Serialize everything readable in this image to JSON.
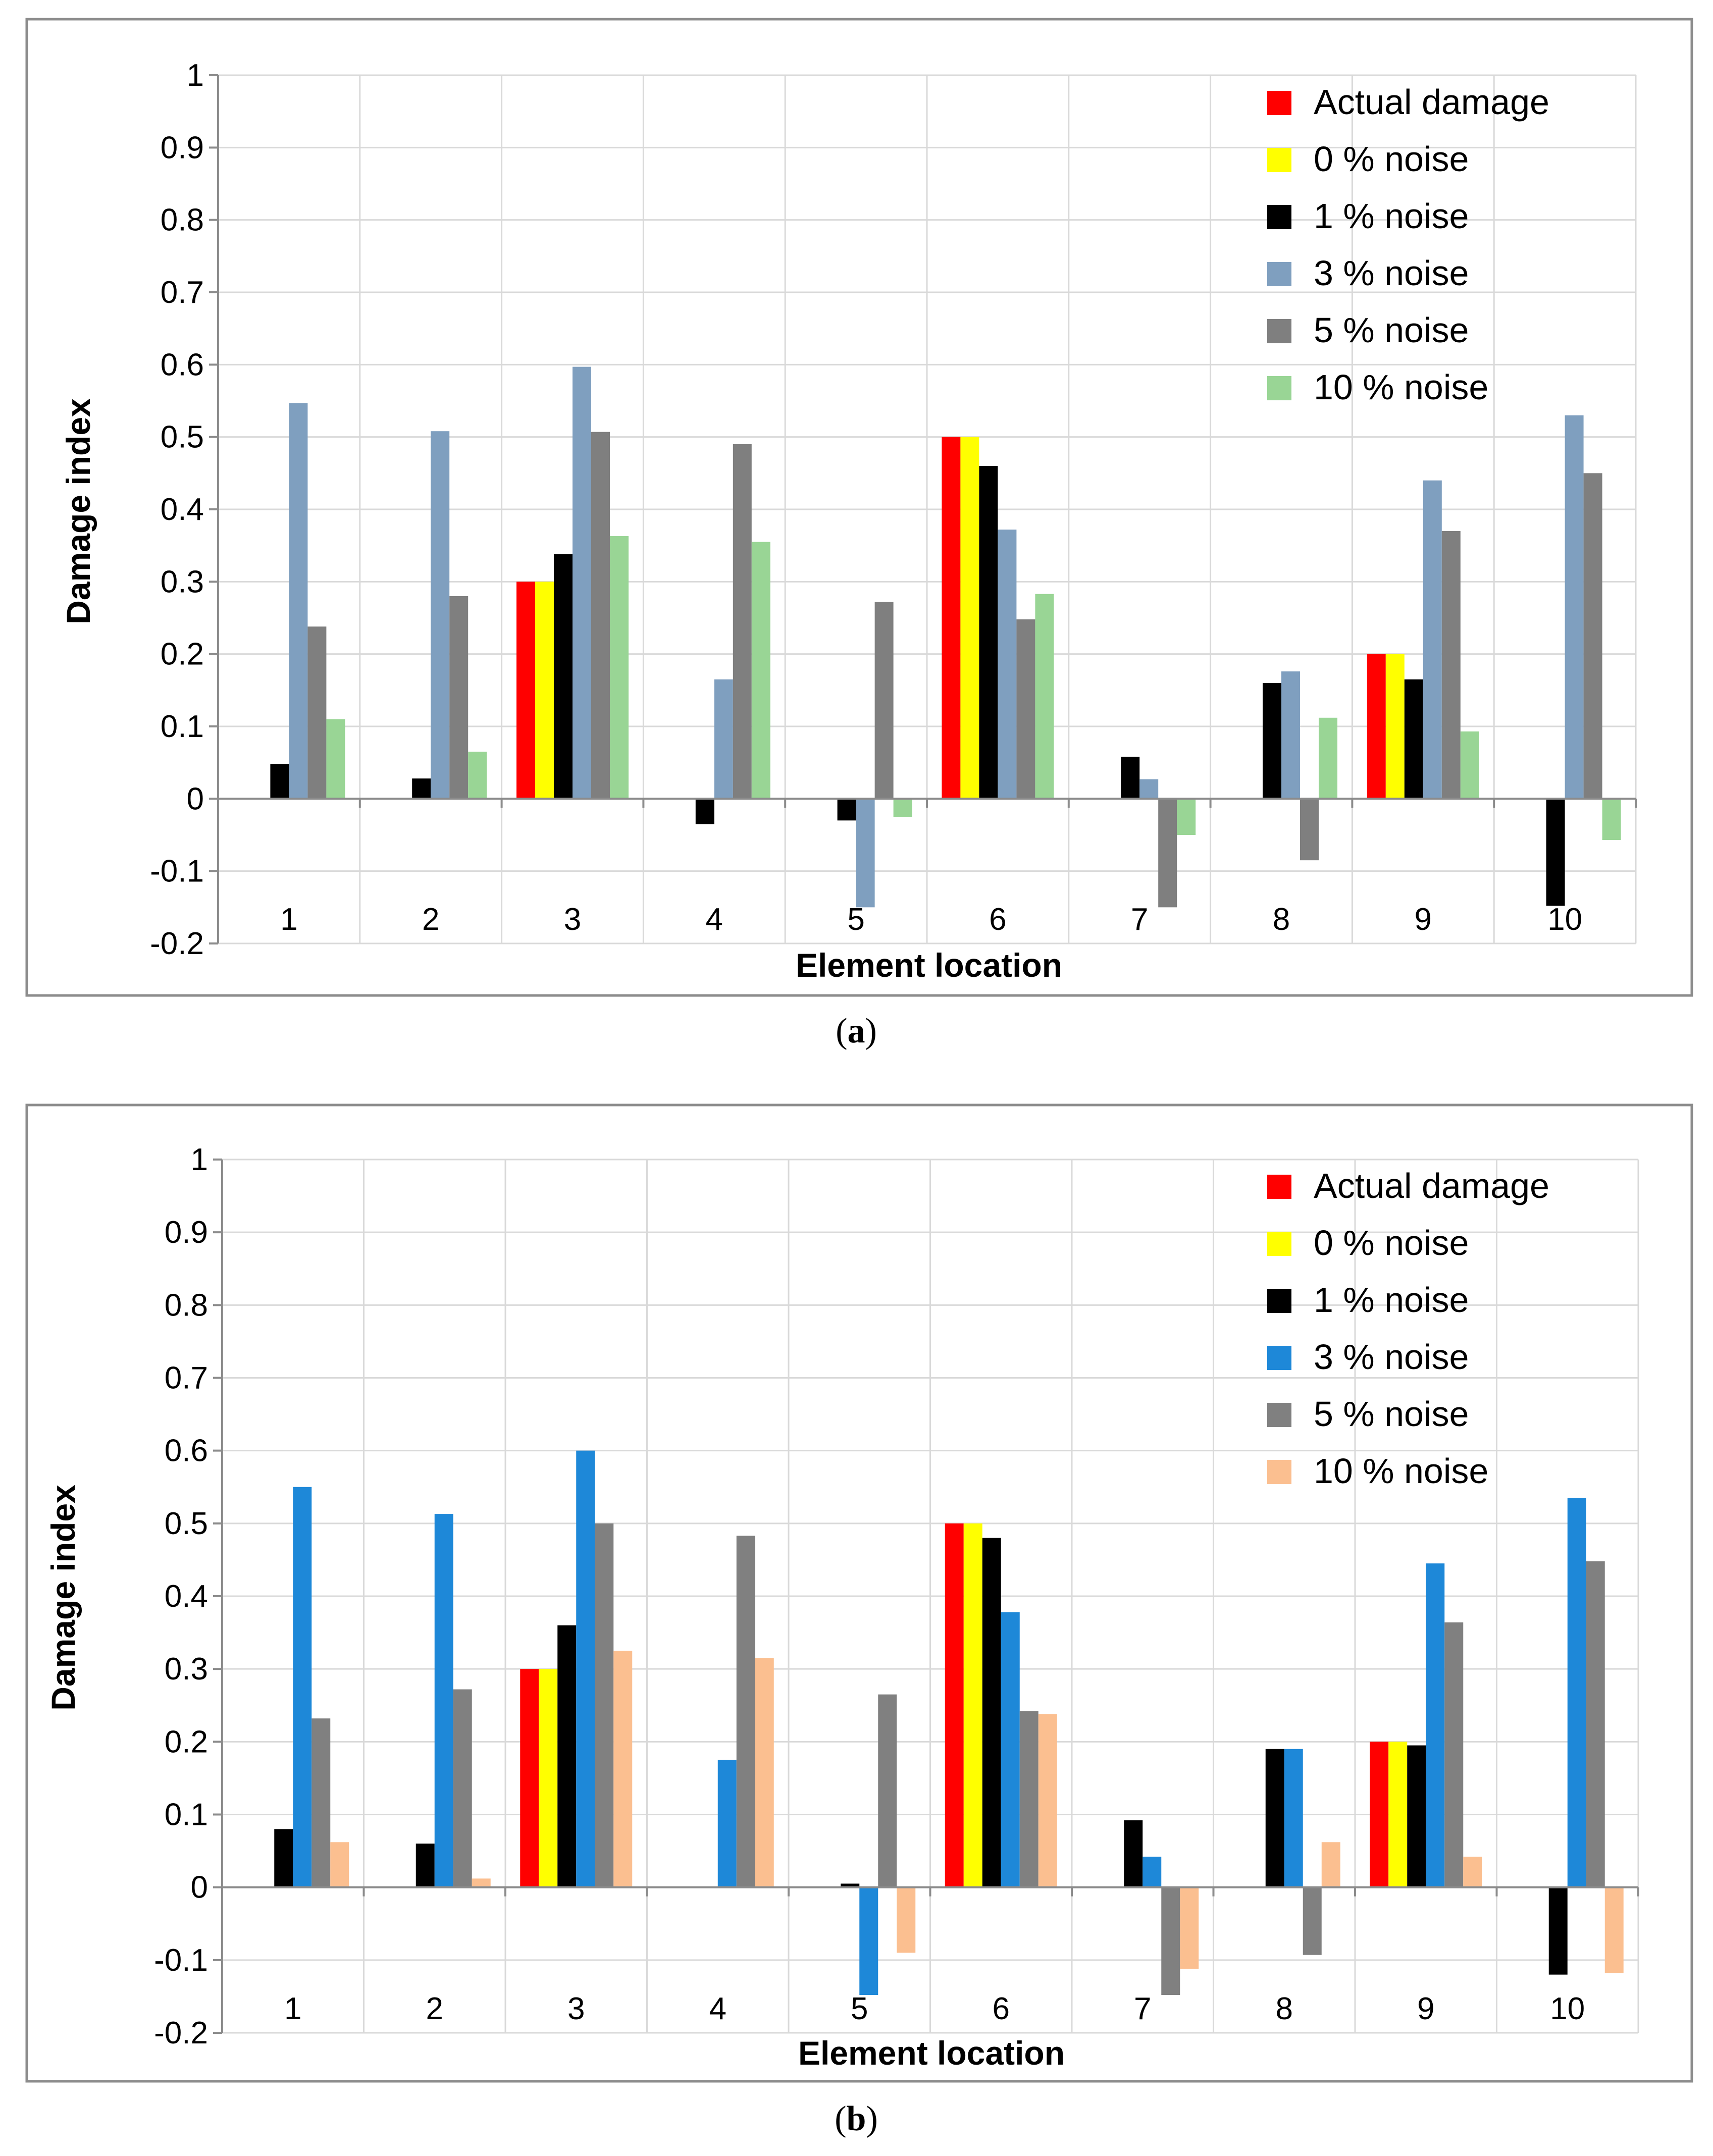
{
  "chart_data": [
    {
      "type": "bar",
      "caption": "(a)",
      "caption_paren_open": "(",
      "caption_letter": "a",
      "caption_paren_close": ")",
      "title": "",
      "xlabel": "Element location",
      "ylabel": "Damage index",
      "ylim": [
        -0.2,
        1
      ],
      "yticks": [
        "-0.2",
        "-0.1",
        "0",
        "0.1",
        "0.2",
        "0.3",
        "0.4",
        "0.5",
        "0.6",
        "0.7",
        "0.8",
        "0.9",
        "1"
      ],
      "grid": true,
      "legend_position": "top-right",
      "categories": [
        "1",
        "2",
        "3",
        "4",
        "5",
        "6",
        "7",
        "8",
        "9",
        "10"
      ],
      "series": [
        {
          "name": "Actual damage",
          "color": "#ff0000",
          "values": [
            0,
            0,
            0.3,
            0,
            0,
            0.5,
            0,
            0,
            0.2,
            0
          ]
        },
        {
          "name": "0 % noise",
          "color": "#ffff00",
          "values": [
            0,
            0,
            0.3,
            0,
            0,
            0.5,
            0,
            0,
            0.2,
            0
          ]
        },
        {
          "name": "1 % noise",
          "color": "#000000",
          "values": [
            0.048,
            0.028,
            0.338,
            -0.035,
            -0.03,
            0.46,
            0.058,
            0.16,
            0.165,
            -0.148
          ]
        },
        {
          "name": "3 % noise",
          "color": "#7f9fbf",
          "values": [
            0.547,
            0.508,
            0.597,
            0.165,
            -0.15,
            0.372,
            0.027,
            0.176,
            0.44,
            0.53
          ]
        },
        {
          "name": "5 % noise",
          "color": "#7f7f7f",
          "values": [
            0.238,
            0.28,
            0.507,
            0.49,
            0.272,
            0.248,
            -0.15,
            -0.085,
            0.37,
            0.45
          ]
        },
        {
          "name": "10 % noise",
          "color": "#99d595",
          "values": [
            0.11,
            0.065,
            0.363,
            0.355,
            -0.025,
            0.283,
            -0.05,
            0.112,
            0.093,
            -0.057
          ]
        }
      ]
    },
    {
      "type": "bar",
      "caption": "(b)",
      "caption_paren_open": "(",
      "caption_letter": "b",
      "caption_paren_close": ")",
      "title": "",
      "xlabel": "Element location",
      "ylabel": "Damage index",
      "ylim": [
        -0.2,
        1
      ],
      "yticks": [
        "-0.2",
        "-0.1",
        "0",
        "0.1",
        "0.2",
        "0.3",
        "0.4",
        "0.5",
        "0.6",
        "0.7",
        "0.8",
        "0.9",
        "1"
      ],
      "grid": true,
      "legend_position": "top-right",
      "categories": [
        "1",
        "2",
        "3",
        "4",
        "5",
        "6",
        "7",
        "8",
        "9",
        "10"
      ],
      "series": [
        {
          "name": "Actual damage",
          "color": "#ff0000",
          "values": [
            0,
            0,
            0.3,
            0,
            0,
            0.5,
            0,
            0,
            0.2,
            0
          ]
        },
        {
          "name": "0 % noise",
          "color": "#ffff00",
          "values": [
            0,
            0,
            0.3,
            0,
            0,
            0.5,
            0,
            0,
            0.2,
            0
          ]
        },
        {
          "name": "1 % noise",
          "color": "#000000",
          "values": [
            0.08,
            0.06,
            0.36,
            0,
            0.005,
            0.48,
            0.092,
            0.19,
            0.195,
            -0.12
          ]
        },
        {
          "name": "3 % noise",
          "color": "#1e88d8",
          "values": [
            0.55,
            0.513,
            0.6,
            0.175,
            -0.148,
            0.378,
            0.042,
            0.19,
            0.445,
            0.535
          ]
        },
        {
          "name": "5 % noise",
          "color": "#808080",
          "values": [
            0.232,
            0.272,
            0.5,
            0.483,
            0.265,
            0.242,
            -0.148,
            -0.093,
            0.364,
            0.448
          ]
        },
        {
          "name": "10 % noise",
          "color": "#fbbf90",
          "values": [
            0.062,
            0.012,
            0.325,
            0.315,
            -0.09,
            0.238,
            -0.112,
            0.062,
            0.042,
            -0.118
          ]
        }
      ]
    }
  ]
}
